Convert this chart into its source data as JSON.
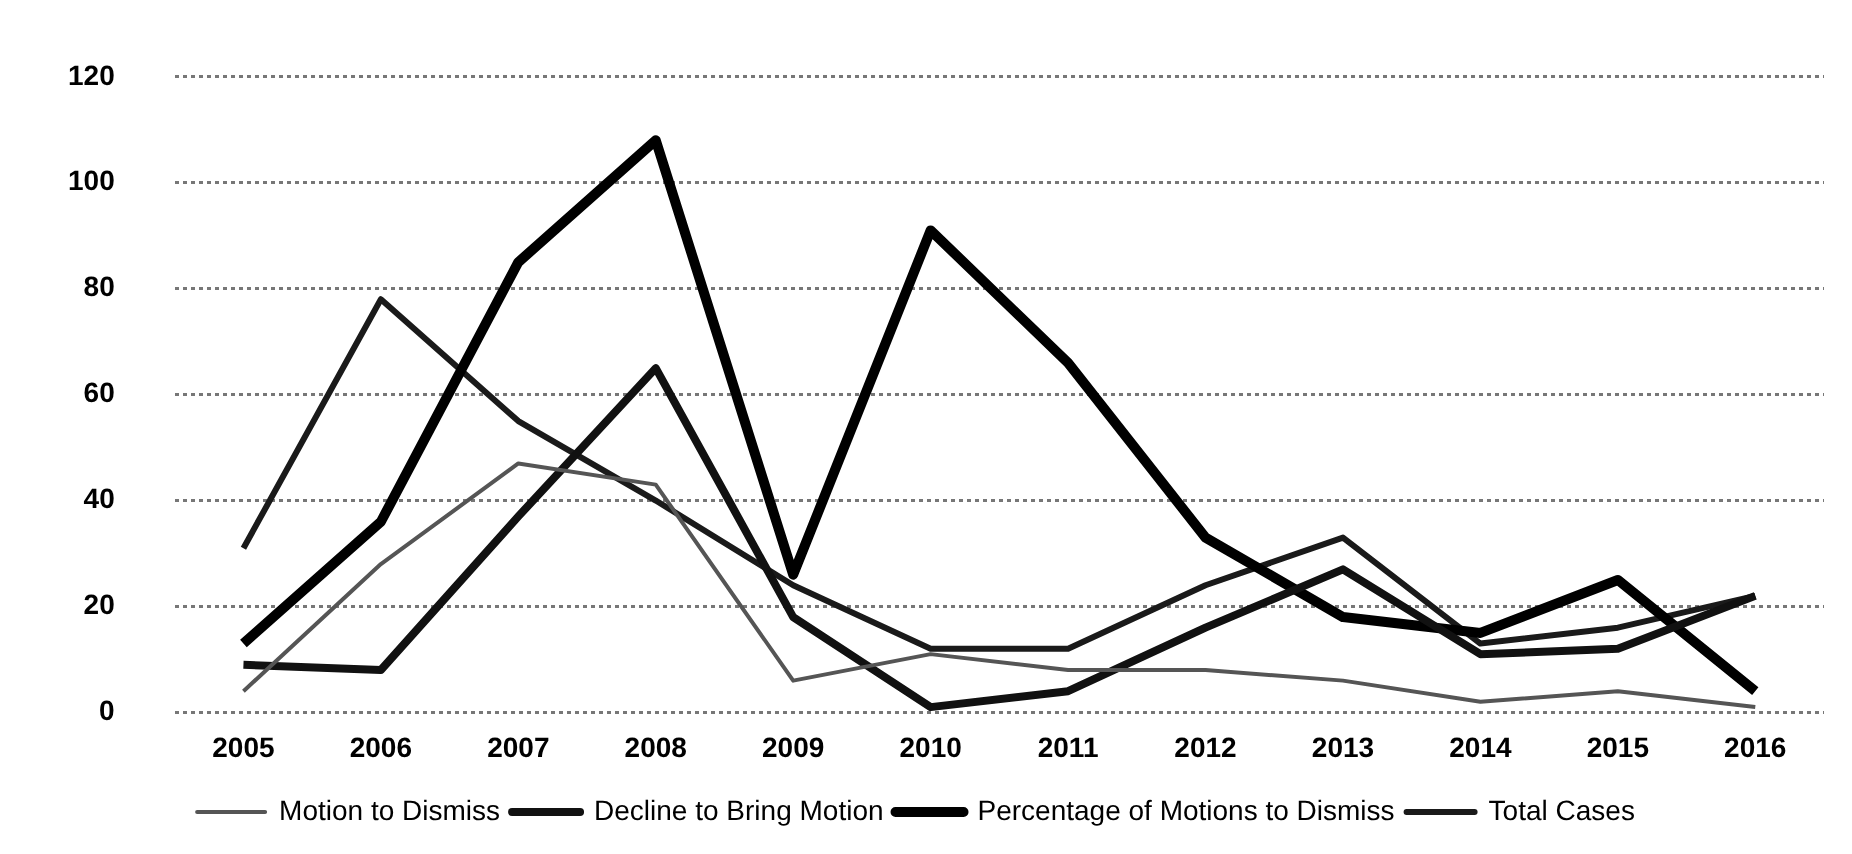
{
  "chart_data": {
    "type": "line",
    "categories": [
      "2005",
      "2006",
      "2007",
      "2008",
      "2009",
      "2010",
      "2011",
      "2012",
      "2013",
      "2014",
      "2015",
      "2016"
    ],
    "series": [
      {
        "name": "Motion to Dismiss",
        "color": "#555555",
        "values": [
          4,
          28,
          47,
          43,
          6,
          11,
          8,
          8,
          6,
          2,
          4,
          1
        ]
      },
      {
        "name": "Decline to Bring Motion",
        "color": "#111111",
        "values": [
          9,
          8,
          37,
          65,
          18,
          1,
          4,
          16,
          27,
          11,
          12,
          22
        ]
      },
      {
        "name": "Percentage of Motions to Dismiss",
        "color": "#000000",
        "values": [
          13,
          36,
          85,
          108,
          26,
          91,
          66,
          33,
          18,
          15,
          25,
          4
        ]
      },
      {
        "name": "Total Cases",
        "color": "#1a1a1a",
        "values": [
          31,
          78,
          55,
          40,
          24,
          12,
          12,
          24,
          33,
          13,
          16,
          22
        ]
      }
    ],
    "ylim": [
      0,
      120
    ],
    "yticks": [
      0,
      20,
      40,
      60,
      80,
      100,
      120
    ],
    "grid": "y",
    "legend": "bottom",
    "marker": "none",
    "line_style": "solid"
  }
}
